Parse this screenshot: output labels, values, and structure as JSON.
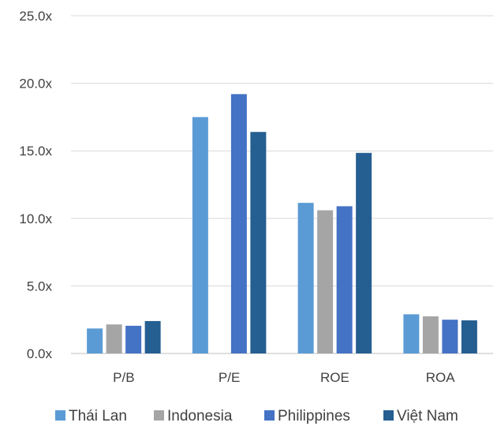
{
  "chart_data": {
    "type": "bar",
    "categories": [
      "P/B",
      "P/E",
      "ROE",
      "ROA"
    ],
    "series": [
      {
        "name": "Thái Lan",
        "color": "#5B9BD5",
        "values": [
          1.85,
          17.5,
          11.15,
          2.9
        ]
      },
      {
        "name": "Indonesia",
        "color": "#A5A5A5",
        "values": [
          2.15,
          null,
          10.6,
          2.75
        ]
      },
      {
        "name": "Philippines",
        "color": "#4472C4",
        "values": [
          2.05,
          19.2,
          10.9,
          2.5
        ]
      },
      {
        "name": "Việt Nam",
        "color": "#255E91",
        "values": [
          2.4,
          16.4,
          14.85,
          2.45
        ]
      }
    ],
    "ylim": [
      0,
      25
    ],
    "yticks": [
      0,
      5,
      10,
      15,
      20,
      25
    ],
    "ytick_labels": [
      "0.0x",
      "5.0x",
      "10.0x",
      "15.0x",
      "20.0x",
      "25.0x"
    ],
    "grid": true,
    "legend_position": "bottom",
    "title": "",
    "xlabel": "",
    "ylabel": ""
  }
}
